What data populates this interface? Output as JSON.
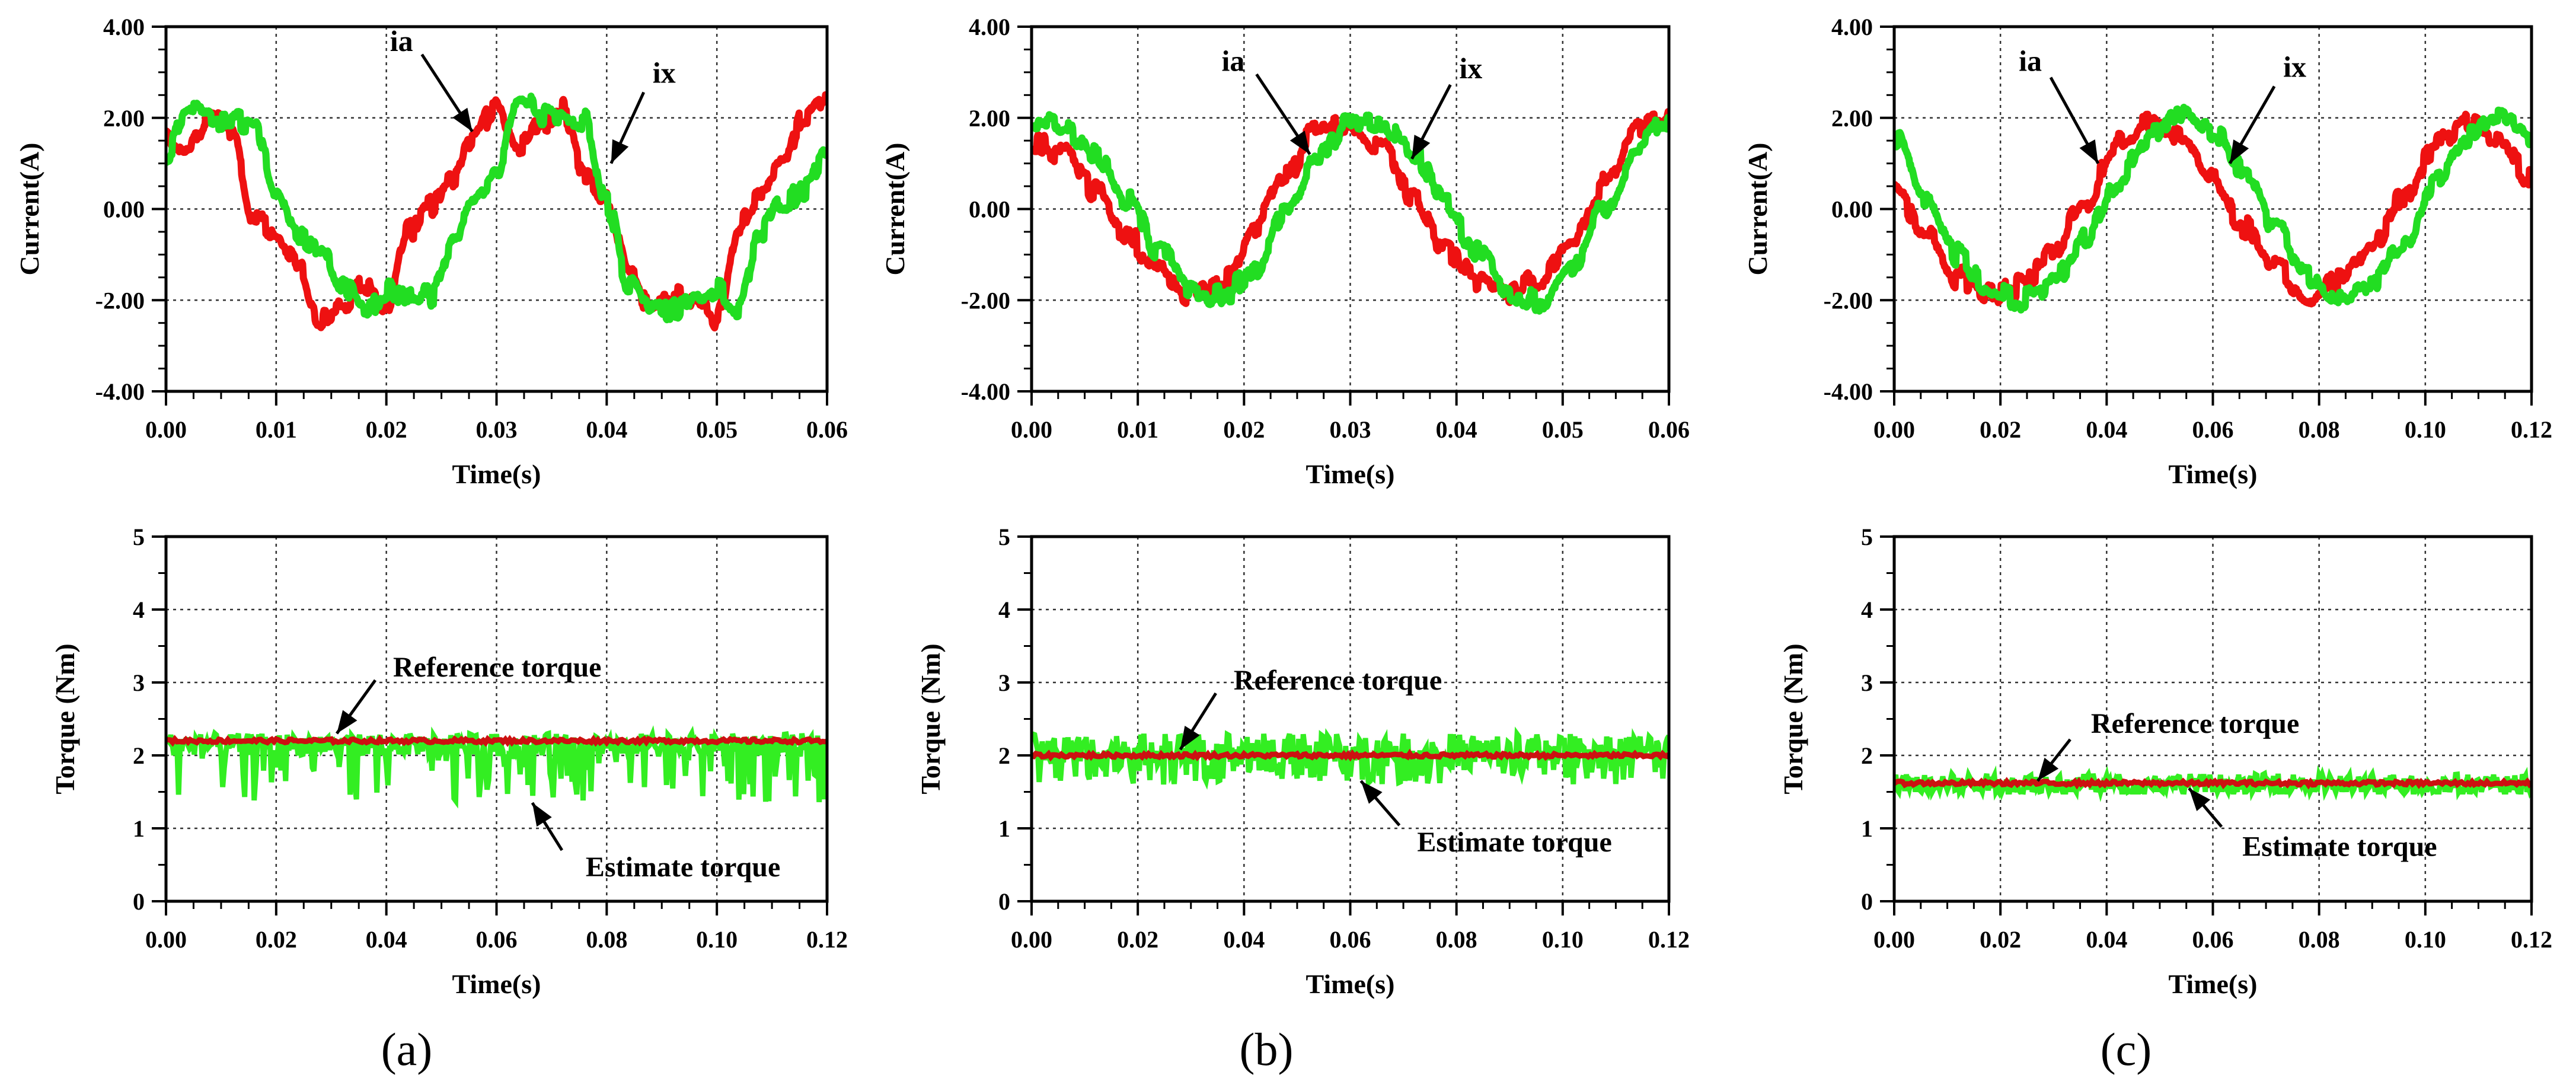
{
  "colors": {
    "ia": "#ee1111",
    "ix": "#22dd22",
    "estimate": "#33ee22",
    "reference": "#cc1111",
    "grid": "#333333",
    "axis": "#000000"
  },
  "captions": [
    "(a)",
    "(b)",
    "(c)"
  ],
  "chart_data": [
    {
      "id": "a-current",
      "type": "line",
      "xlabel": "Time(s)",
      "ylabel": "Current(A)",
      "xlim": [
        0,
        0.06
      ],
      "ylim": [
        -4,
        4
      ],
      "xticks": [
        "0.00",
        "0.01",
        "0.02",
        "0.03",
        "0.04",
        "0.05",
        "0.06"
      ],
      "yticks": [
        "-4.00",
        "-2.00",
        "0.00",
        "2.00",
        "4.00"
      ],
      "series": [
        {
          "name": "ia",
          "color_key": "ia",
          "x": [
            0,
            0.002,
            0.004,
            0.006,
            0.008,
            0.01,
            0.012,
            0.014,
            0.016,
            0.018,
            0.02,
            0.022,
            0.024,
            0.026,
            0.028,
            0.03,
            0.032,
            0.034,
            0.036,
            0.038,
            0.04,
            0.042,
            0.044,
            0.046,
            0.048,
            0.05,
            0.052,
            0.054,
            0.056,
            0.058,
            0.06
          ],
          "y": [
            1.6,
            1.3,
            2.1,
            1.6,
            -0.2,
            -0.6,
            -1.3,
            -2.4,
            -2.2,
            -1.7,
            -2.2,
            -0.5,
            0.1,
            0.6,
            1.6,
            2.3,
            1.3,
            1.9,
            2.2,
            0.8,
            0.3,
            -1.4,
            -2.2,
            -1.9,
            -2.1,
            -2.4,
            -0.4,
            0.4,
            0.9,
            2.1,
            2.3
          ]
        },
        {
          "name": "ix",
          "color_key": "ix",
          "x": [
            0,
            0.002,
            0.004,
            0.006,
            0.008,
            0.01,
            0.012,
            0.014,
            0.016,
            0.018,
            0.02,
            0.022,
            0.024,
            0.026,
            0.028,
            0.03,
            0.032,
            0.034,
            0.036,
            0.038,
            0.04,
            0.042,
            0.044,
            0.046,
            0.048,
            0.05,
            0.052,
            0.054,
            0.056,
            0.058,
            0.06
          ],
          "y": [
            1.2,
            2.2,
            1.9,
            2.0,
            1.8,
            0.4,
            -0.6,
            -0.8,
            -1.6,
            -2.3,
            -1.8,
            -2.0,
            -1.9,
            -0.7,
            0.1,
            0.7,
            2.4,
            2.1,
            1.9,
            2.0,
            0.1,
            -1.6,
            -2.3,
            -2.2,
            -2.1,
            -1.7,
            -2.2,
            -0.5,
            0.1,
            0.4,
            1.2
          ]
        }
      ],
      "annotations": [
        {
          "text": "ia",
          "target_x": 0.0278,
          "target_y": 1.7
        },
        {
          "text": "ix",
          "target_x": 0.0404,
          "target_y": 1.0
        }
      ]
    },
    {
      "id": "b-current",
      "type": "line",
      "xlabel": "Time(s)",
      "ylabel": "Current(A)",
      "xlim": [
        0,
        0.06
      ],
      "ylim": [
        -4,
        4
      ],
      "xticks": [
        "0.00",
        "0.01",
        "0.02",
        "0.03",
        "0.04",
        "0.05",
        "0.06"
      ],
      "yticks": [
        "-4.00",
        "-2.00",
        "0.00",
        "2.00",
        "4.00"
      ],
      "series": [
        {
          "name": "ia",
          "color_key": "ia",
          "x": [
            0,
            0.003,
            0.006,
            0.009,
            0.012,
            0.015,
            0.018,
            0.021,
            0.024,
            0.027,
            0.03,
            0.033,
            0.036,
            0.039,
            0.042,
            0.045,
            0.048,
            0.051,
            0.054,
            0.057,
            0.06
          ],
          "y": [
            1.5,
            1.2,
            0.4,
            -0.6,
            -1.4,
            -1.9,
            -1.6,
            -0.4,
            0.8,
            1.8,
            1.9,
            1.3,
            0.2,
            -0.9,
            -1.6,
            -1.9,
            -1.5,
            -0.6,
            0.6,
            1.8,
            1.9
          ]
        },
        {
          "name": "ix",
          "color_key": "ix",
          "x": [
            0,
            0.003,
            0.006,
            0.009,
            0.012,
            0.015,
            0.018,
            0.021,
            0.024,
            0.027,
            0.03,
            0.033,
            0.036,
            0.039,
            0.042,
            0.045,
            0.048,
            0.051,
            0.054,
            0.057,
            0.06
          ],
          "y": [
            2.0,
            1.8,
            1.2,
            0.2,
            -0.9,
            -1.8,
            -1.9,
            -1.3,
            -0.1,
            1.1,
            2.0,
            1.9,
            1.2,
            0.1,
            -1.0,
            -1.8,
            -2.0,
            -1.2,
            0.1,
            1.3,
            2.0
          ]
        }
      ],
      "annotations": [
        {
          "text": "ia",
          "target_x": 0.0262,
          "target_y": 1.2
        },
        {
          "text": "ix",
          "target_x": 0.0358,
          "target_y": 1.1
        }
      ]
    },
    {
      "id": "c-current",
      "type": "line",
      "xlabel": "Time(s)",
      "ylabel": "Current(A)",
      "xlim": [
        0,
        0.12
      ],
      "ylim": [
        -4,
        4
      ],
      "xticks": [
        "0.00",
        "0.02",
        "0.04",
        "0.06",
        "0.08",
        "0.10",
        "0.12"
      ],
      "yticks": [
        "-4.00",
        "-2.00",
        "0.00",
        "2.00",
        "4.00"
      ],
      "series": [
        {
          "name": "ia",
          "color_key": "ia",
          "x": [
            0,
            0.006,
            0.012,
            0.018,
            0.024,
            0.03,
            0.036,
            0.042,
            0.048,
            0.054,
            0.06,
            0.066,
            0.072,
            0.078,
            0.084,
            0.09,
            0.096,
            0.102,
            0.108,
            0.114,
            0.12
          ],
          "y": [
            0.5,
            -0.6,
            -1.5,
            -1.9,
            -1.7,
            -0.9,
            0.2,
            1.4,
            1.9,
            1.6,
            0.7,
            -0.4,
            -1.3,
            -1.9,
            -1.6,
            -0.8,
            0.3,
            1.4,
            1.9,
            1.6,
            0.6
          ]
        },
        {
          "name": "ix",
          "color_key": "ix",
          "x": [
            0,
            0.006,
            0.012,
            0.018,
            0.024,
            0.03,
            0.036,
            0.042,
            0.048,
            0.054,
            0.06,
            0.066,
            0.072,
            0.078,
            0.084,
            0.09,
            0.096,
            0.102,
            0.108,
            0.114,
            0.12
          ],
          "y": [
            1.6,
            0.2,
            -1.0,
            -1.8,
            -2.0,
            -1.6,
            -0.6,
            0.6,
            1.6,
            2.0,
            1.7,
            0.8,
            -0.4,
            -1.5,
            -2.0,
            -1.7,
            -0.7,
            0.6,
            1.6,
            2.0,
            1.6
          ]
        }
      ],
      "annotations": [
        {
          "text": "ia",
          "target_x": 0.0384,
          "target_y": 1.0
        },
        {
          "text": "ix",
          "target_x": 0.0632,
          "target_y": 1.0
        }
      ]
    },
    {
      "id": "a-torque",
      "type": "line",
      "xlabel": "Time(s)",
      "ylabel": "Torque (Nm)",
      "xlim": [
        0,
        0.12
      ],
      "ylim": [
        0,
        5
      ],
      "xticks": [
        "0.00",
        "0.02",
        "0.04",
        "0.06",
        "0.08",
        "0.10",
        "0.12"
      ],
      "yticks": [
        "0",
        "1",
        "2",
        "3",
        "4",
        "5"
      ],
      "reference": {
        "name": "Reference torque",
        "value": 2.2
      },
      "estimate": {
        "name": "Estimate torque",
        "band_low": 2.0,
        "band_high": 2.3,
        "dip_min": 1.35
      },
      "annotations": [
        {
          "text": "Reference torque",
          "target_x": 0.031,
          "target_y": 2.3
        },
        {
          "text": "Estimate torque",
          "target_x": 0.0665,
          "target_y": 1.35
        }
      ]
    },
    {
      "id": "b-torque",
      "type": "line",
      "xlabel": "Time(s)",
      "ylabel": "Torque (Nm)",
      "xlim": [
        0,
        0.12
      ],
      "ylim": [
        0,
        5
      ],
      "xticks": [
        "0.00",
        "0.02",
        "0.04",
        "0.06",
        "0.08",
        "0.10",
        "0.12"
      ],
      "yticks": [
        "0",
        "1",
        "2",
        "3",
        "4",
        "5"
      ],
      "reference": {
        "name": "Reference torque",
        "value": 2.0
      },
      "estimate": {
        "name": "Estimate torque",
        "band_low": 1.85,
        "band_high": 2.3,
        "dip_min": 1.6
      },
      "annotations": [
        {
          "text": "Reference torque",
          "target_x": 0.028,
          "target_y": 2.08
        },
        {
          "text": "Estimate torque",
          "target_x": 0.062,
          "target_y": 1.65
        }
      ]
    },
    {
      "id": "c-torque",
      "type": "line",
      "xlabel": "Time(s)",
      "ylabel": "Torque (Nm)",
      "xlim": [
        0,
        0.12
      ],
      "ylim": [
        0,
        5
      ],
      "xticks": [
        "0.00",
        "0.02",
        "0.04",
        "0.06",
        "0.08",
        "0.10",
        "0.12"
      ],
      "yticks": [
        "0",
        "1",
        "2",
        "3",
        "4",
        "5"
      ],
      "reference": {
        "name": "Reference torque",
        "value": 1.62
      },
      "estimate": {
        "name": "Estimate torque",
        "band_low": 1.5,
        "band_high": 1.75,
        "dip_min": 1.5
      },
      "annotations": [
        {
          "text": "Reference torque",
          "target_x": 0.027,
          "target_y": 1.65
        },
        {
          "text": "Estimate torque",
          "target_x": 0.0555,
          "target_y": 1.55
        }
      ]
    }
  ]
}
